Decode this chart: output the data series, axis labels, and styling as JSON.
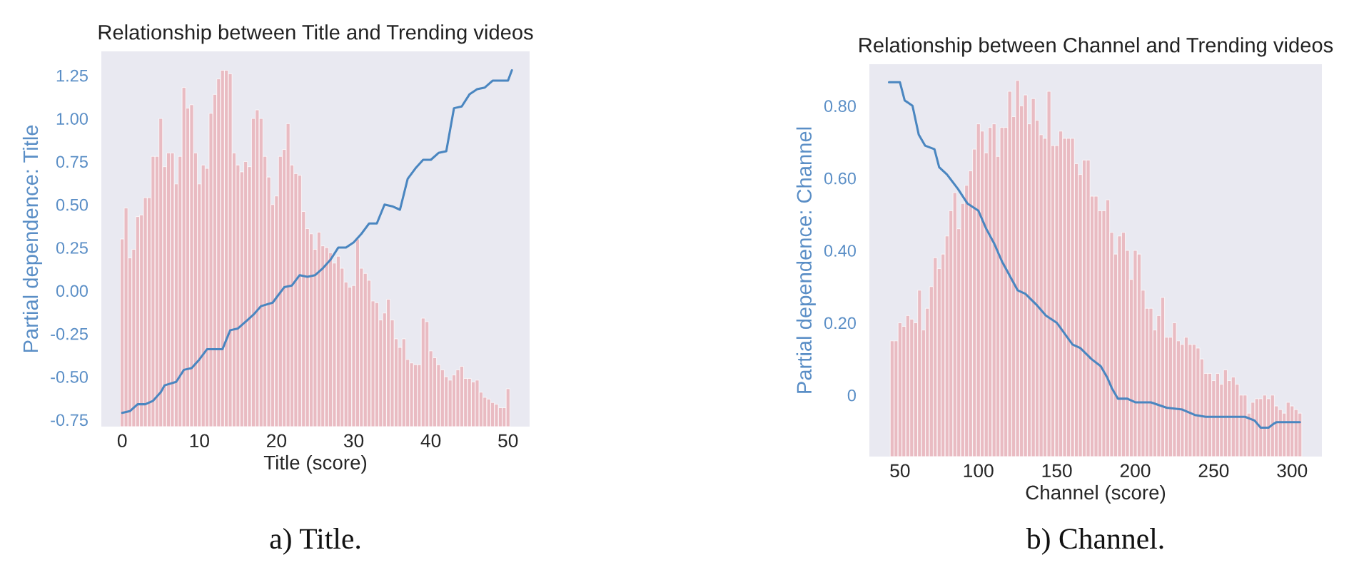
{
  "chart_data": [
    {
      "type": "line",
      "title": "Relationship between Title and Trending videos",
      "xlabel": "Title (score)",
      "ylabel": "Partial dependence: Title",
      "annotations": [
        "a) Title."
      ],
      "xlim": [
        -2.7,
        52.8
      ],
      "xticks": [
        0,
        10,
        20,
        30,
        40,
        50
      ],
      "ylim": [
        -0.79,
        1.39
      ],
      "yticks": [
        {
          "value": -0.75,
          "label": "-0.75"
        },
        {
          "value": -0.5,
          "label": "-0.50"
        },
        {
          "value": -0.25,
          "label": "-0.25"
        },
        {
          "value": 0,
          "label": "0.00"
        },
        {
          "value": 0.25,
          "label": "0.25"
        },
        {
          "value": 0.5,
          "label": "0.50"
        },
        {
          "value": 0.75,
          "label": "0.75"
        },
        {
          "value": 1,
          "label": "1.00"
        },
        {
          "value": 1.25,
          "label": "1.25"
        }
      ],
      "series": [
        {
          "type": "bar",
          "color": "#eab3ba",
          "x": [
            0,
            0.5,
            1,
            1.5,
            2,
            2.5,
            3,
            3.5,
            4,
            4.5,
            5,
            5.5,
            6,
            6.5,
            7,
            7.5,
            8,
            8.5,
            9,
            9.5,
            10,
            10.5,
            11,
            11.5,
            12,
            12.5,
            13,
            13.5,
            14,
            14.5,
            15,
            15.5,
            16,
            16.5,
            17,
            17.5,
            18,
            18.5,
            19,
            19.5,
            20,
            20.5,
            21,
            21.5,
            22,
            22.5,
            23,
            23.5,
            24,
            24.5,
            25,
            25.5,
            26,
            26.5,
            27,
            27.5,
            28,
            28.5,
            29,
            29.5,
            30,
            30.5,
            31,
            31.5,
            32,
            32.5,
            33,
            33.5,
            34,
            34.5,
            35,
            35.5,
            36,
            36.5,
            37,
            37.5,
            38,
            38.5,
            39,
            39.5,
            40,
            40.5,
            41,
            41.5,
            42,
            42.5,
            43,
            43.5,
            44,
            44.5,
            45,
            45.5,
            46,
            46.5,
            47,
            47.5,
            48,
            48.5,
            49,
            49.5,
            50
          ],
          "base": [
            -0.79,
            -0.79,
            -0.79,
            -0.79,
            -0.79,
            -0.79,
            -0.79,
            -0.79,
            -0.79,
            -0.79,
            -0.79,
            -0.79,
            -0.79,
            -0.79,
            -0.79,
            -0.79,
            -0.79,
            -0.79,
            -0.79,
            -0.79,
            -0.79,
            -0.79,
            -0.79,
            -0.79,
            -0.79,
            -0.79,
            -0.79,
            -0.79,
            -0.79,
            -0.79,
            -0.79,
            -0.79,
            -0.79,
            -0.79,
            -0.79,
            -0.79,
            -0.79,
            -0.79,
            -0.79,
            -0.79,
            -0.79,
            -0.79,
            -0.79,
            -0.79,
            -0.79,
            -0.79,
            -0.79,
            -0.79,
            -0.79,
            -0.79,
            -0.79,
            -0.79,
            -0.79,
            -0.79,
            -0.79,
            -0.79,
            -0.79,
            -0.79,
            -0.79,
            -0.79,
            -0.79,
            -0.79,
            -0.79,
            -0.79,
            -0.79,
            -0.79,
            -0.79,
            -0.79,
            -0.79,
            -0.79,
            -0.79,
            -0.79,
            -0.79,
            -0.79,
            -0.79,
            -0.79,
            -0.79,
            -0.79,
            -0.79,
            -0.79,
            -0.79,
            -0.79,
            -0.79,
            -0.79,
            -0.79,
            -0.79,
            -0.79,
            -0.79,
            -0.79,
            -0.79,
            -0.79,
            -0.79,
            -0.79,
            -0.79,
            -0.79,
            -0.79,
            -0.79,
            -0.79,
            -0.79,
            -0.79,
            -0.79
          ],
          "values": [
            1.09,
            1.27,
            0.98,
            1.03,
            1.22,
            1.23,
            1.33,
            1.33,
            1.57,
            1.57,
            1.79,
            1.51,
            1.59,
            1.59,
            1.41,
            1.57,
            1.97,
            1.85,
            1.87,
            1.59,
            1.41,
            1.52,
            1.5,
            1.82,
            1.93,
            2.02,
            2.07,
            2.07,
            2.05,
            1.59,
            1.52,
            1.48,
            1.54,
            1.51,
            1.79,
            1.84,
            1.79,
            1.57,
            1.45,
            1.29,
            1.34,
            1.57,
            1.61,
            1.76,
            1.52,
            1.47,
            1.46,
            1.25,
            1.15,
            1.12,
            1.03,
            1.13,
            1.05,
            1.04,
            1.01,
            0.95,
            0.99,
            0.92,
            0.84,
            0.81,
            0.82,
            1.09,
            0.92,
            0.89,
            0.85,
            0.73,
            0.72,
            0.62,
            0.66,
            0.74,
            0.62,
            0.51,
            0.46,
            0.51,
            0.39,
            0.37,
            0.36,
            0.36,
            0.63,
            0.61,
            0.44,
            0.4,
            0.36,
            0.33,
            0.29,
            0.27,
            0.3,
            0.33,
            0.35,
            0.28,
            0.28,
            0.26,
            0.27,
            0.2,
            0.17,
            0.16,
            0.14,
            0.13,
            0.11,
            0.11,
            0.22
          ]
        },
        {
          "color": "#4a86c0",
          "x": [
            0,
            1,
            2,
            3,
            4,
            5,
            5.5,
            7,
            8,
            9,
            10,
            11,
            13,
            14,
            15,
            16,
            17,
            18,
            19.5,
            20,
            21,
            22,
            23,
            24,
            25,
            26,
            27,
            28,
            29,
            30,
            31,
            32,
            33,
            34,
            35,
            36,
            37,
            38,
            39,
            40,
            41,
            42,
            43,
            44,
            45,
            46,
            47,
            48,
            49,
            50,
            50.5
          ],
          "values": [
            -0.71,
            -0.7,
            -0.66,
            -0.66,
            -0.64,
            -0.59,
            -0.55,
            -0.53,
            -0.46,
            -0.45,
            -0.4,
            -0.34,
            -0.34,
            -0.23,
            -0.22,
            -0.18,
            -0.14,
            -0.09,
            -0.07,
            -0.04,
            0.02,
            0.03,
            0.09,
            0.08,
            0.09,
            0.13,
            0.18,
            0.25,
            0.25,
            0.28,
            0.33,
            0.39,
            0.39,
            0.5,
            0.49,
            0.47,
            0.65,
            0.71,
            0.76,
            0.76,
            0.8,
            0.81,
            1.06,
            1.07,
            1.14,
            1.17,
            1.18,
            1.22,
            1.22,
            1.22,
            1.28
          ]
        }
      ]
    },
    {
      "type": "line",
      "title": "Relationship between Channel and Trending videos",
      "xlabel": "Channel (score)",
      "ylabel": "Partial dependence: Channel",
      "annotations": [
        "b) Channel."
      ],
      "xlim": [
        30.5,
        319
      ],
      "xticks": [
        50,
        100,
        150,
        200,
        250,
        300
      ],
      "ylim": [
        -0.17,
        0.915
      ],
      "yticks": [
        {
          "value": 0,
          "label": "0"
        },
        {
          "value": 0.2,
          "label": "0.20"
        },
        {
          "value": 0.4,
          "label": "0.40"
        },
        {
          "value": 0.6,
          "label": "0.60"
        },
        {
          "value": 0.8,
          "label": "0.80"
        }
      ],
      "series": [
        {
          "type": "bar",
          "color": "#eab3ba",
          "x": [
            45,
            47.5,
            50,
            52.5,
            55,
            57.5,
            60,
            62.5,
            65,
            67.5,
            70,
            72.5,
            75,
            77.5,
            80,
            82.5,
            85,
            87.5,
            90,
            92.5,
            95,
            97.5,
            100,
            102.5,
            105,
            107.5,
            110,
            112.5,
            115,
            117.5,
            120,
            122.5,
            125,
            127.5,
            130,
            132.5,
            135,
            137.5,
            140,
            142.5,
            145,
            147.5,
            150,
            152.5,
            155,
            157.5,
            160,
            162.5,
            165,
            167.5,
            170,
            172.5,
            175,
            177.5,
            180,
            182.5,
            185,
            187.5,
            190,
            192.5,
            195,
            197.5,
            200,
            202.5,
            205,
            207.5,
            210,
            212.5,
            215,
            217.5,
            220,
            222.5,
            225,
            227.5,
            230,
            232.5,
            235,
            237.5,
            240,
            242.5,
            245,
            247.5,
            250,
            252.5,
            255,
            257.5,
            260,
            262.5,
            265,
            267.5,
            270,
            272.5,
            275,
            277.5,
            280,
            282.5,
            285,
            287.5,
            290,
            292.5,
            295,
            297.5,
            300,
            302.5,
            305
          ],
          "base": [
            -0.17,
            -0.17,
            -0.17,
            -0.17,
            -0.17,
            -0.17,
            -0.17,
            -0.17,
            -0.17,
            -0.17,
            -0.17,
            -0.17,
            -0.17,
            -0.17,
            -0.17,
            -0.17,
            -0.17,
            -0.17,
            -0.17,
            -0.17,
            -0.17,
            -0.17,
            -0.17,
            -0.17,
            -0.17,
            -0.17,
            -0.17,
            -0.17,
            -0.17,
            -0.17,
            -0.17,
            -0.17,
            -0.17,
            -0.17,
            -0.17,
            -0.17,
            -0.17,
            -0.17,
            -0.17,
            -0.17,
            -0.17,
            -0.17,
            -0.17,
            -0.17,
            -0.17,
            -0.17,
            -0.17,
            -0.17,
            -0.17,
            -0.17,
            -0.17,
            -0.17,
            -0.17,
            -0.17,
            -0.17,
            -0.17,
            -0.17,
            -0.17,
            -0.17,
            -0.17,
            -0.17,
            -0.17,
            -0.17,
            -0.17,
            -0.17,
            -0.17,
            -0.17,
            -0.17,
            -0.17,
            -0.17,
            -0.17,
            -0.17,
            -0.17,
            -0.17,
            -0.17,
            -0.17,
            -0.17,
            -0.17,
            -0.17,
            -0.17,
            -0.17,
            -0.17,
            -0.17,
            -0.17,
            -0.17,
            -0.17,
            -0.17,
            -0.17,
            -0.17,
            -0.17,
            -0.17,
            -0.17,
            -0.17,
            -0.17,
            -0.17,
            -0.17,
            -0.17,
            -0.17,
            -0.17,
            -0.17,
            -0.17,
            -0.17,
            -0.17,
            -0.17,
            -0.17
          ],
          "values": [
            0.32,
            0.32,
            0.37,
            0.36,
            0.39,
            0.38,
            0.37,
            0.46,
            0.35,
            0.41,
            0.47,
            0.55,
            0.52,
            0.56,
            0.61,
            0.68,
            0.73,
            0.63,
            0.7,
            0.75,
            0.79,
            0.85,
            0.92,
            0.9,
            0.84,
            0.91,
            0.92,
            0.83,
            0.91,
            0.91,
            1.01,
            0.94,
            1.04,
            0.97,
            1.0,
            0.92,
            0.99,
            0.93,
            0.89,
            0.88,
            1.01,
            0.86,
            0.86,
            0.9,
            0.88,
            0.88,
            0.88,
            0.81,
            0.78,
            0.82,
            0.82,
            0.72,
            0.72,
            0.68,
            0.68,
            0.71,
            0.62,
            0.56,
            0.61,
            0.62,
            0.57,
            0.49,
            0.57,
            0.56,
            0.46,
            0.41,
            0.41,
            0.35,
            0.39,
            0.44,
            0.33,
            0.33,
            0.37,
            0.32,
            0.31,
            0.33,
            0.31,
            0.31,
            0.3,
            0.27,
            0.23,
            0.23,
            0.21,
            0.23,
            0.2,
            0.24,
            0.21,
            0.22,
            0.2,
            0.17,
            0.17,
            0.12,
            0.15,
            0.16,
            0.16,
            0.17,
            0.16,
            0.17,
            0.14,
            0.13,
            0.12,
            0.15,
            0.14,
            0.13,
            0.12
          ]
        },
        {
          "color": "#4a86c0",
          "x": [
            43,
            50,
            53,
            58,
            62,
            66,
            72,
            75,
            80,
            87,
            93,
            100,
            105,
            110,
            115,
            120,
            125,
            130,
            137,
            143,
            150,
            155,
            160,
            165,
            172,
            178,
            182,
            185,
            189,
            195,
            200,
            210,
            220,
            230,
            238,
            245,
            260,
            270,
            276,
            280,
            285,
            288,
            290,
            305
          ],
          "values": [
            0.865,
            0.865,
            0.815,
            0.8,
            0.72,
            0.69,
            0.68,
            0.63,
            0.61,
            0.57,
            0.53,
            0.51,
            0.46,
            0.42,
            0.37,
            0.33,
            0.29,
            0.28,
            0.25,
            0.22,
            0.2,
            0.17,
            0.14,
            0.13,
            0.1,
            0.08,
            0.05,
            0.02,
            -0.01,
            -0.01,
            -0.02,
            -0.02,
            -0.035,
            -0.04,
            -0.055,
            -0.06,
            -0.06,
            -0.06,
            -0.07,
            -0.09,
            -0.09,
            -0.08,
            -0.075,
            -0.075
          ]
        }
      ]
    }
  ]
}
